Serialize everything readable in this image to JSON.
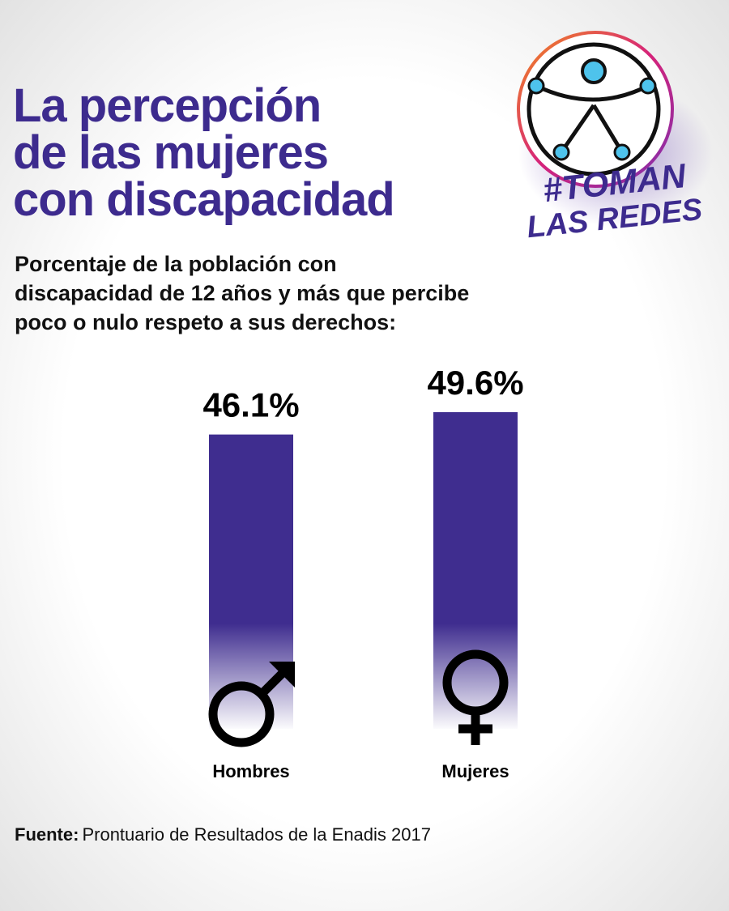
{
  "title_lines": [
    "La percepción",
    "de las mujeres",
    "con discapacidad"
  ],
  "logo": {
    "line1": "#TOMAN",
    "line2": "LAS REDES"
  },
  "chart_data": {
    "type": "bar",
    "subtitle_lines": [
      "Porcentaje de la población con",
      "discapacidad de 12 años y más que percibe",
      "poco o nulo respeto a sus derechos:"
    ],
    "categories": [
      "Hombres",
      "Mujeres"
    ],
    "values": [
      46.1,
      49.6
    ],
    "value_labels": [
      "46.1%",
      "49.6%"
    ],
    "color": "#3f2d8f"
  },
  "source": {
    "label": "Fuente:",
    "text": "Prontuario de Resultados de la Enadis 2017"
  }
}
